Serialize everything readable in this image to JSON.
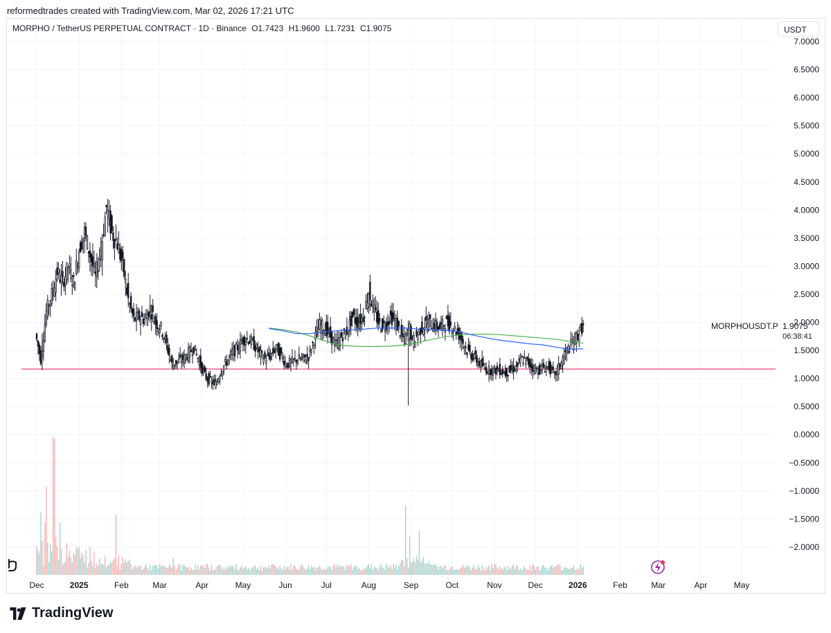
{
  "header": {
    "text": "reformedtrades created with TradingView.com, Mar 02, 2026 17:21 UTC"
  },
  "legend": {
    "symbol": "MORPHO / TetherUS PERPETUAL CONTRACT · 1D · Binance",
    "open": "O1.7423",
    "high": "H1.9600",
    "low": "L1.7231",
    "close": "C1.9075"
  },
  "currency_button": "USDT",
  "last_price": {
    "symbol": "MORPHOUSDT.P",
    "price": "1.9075",
    "countdown": "06:38:41"
  },
  "brand": "TradingView",
  "colors": {
    "candle": "#131722",
    "support_line": "#f06292",
    "ma_green": "#4caf50",
    "ma_blue": "#2962ff",
    "vol_up": "#26a69a",
    "vol_down": "#ef5350",
    "grid": "#f0f3fa"
  },
  "chart_data": {
    "type": "line",
    "subtype": "candlestick",
    "yaxis": {
      "ticks": [
        "7.0000",
        "6.5000",
        "6.0000",
        "5.5000",
        "5.0000",
        "4.5000",
        "4.0000",
        "3.5000",
        "3.0000",
        "2.5000",
        "2.0000",
        "1.5000",
        "1.0000",
        "0.5000",
        "0.0000",
        "−0.5000",
        "−1.0000",
        "−1.5000",
        "−2.0000"
      ],
      "tick_values": [
        7,
        6.5,
        6,
        5.5,
        5,
        4.5,
        4,
        3.5,
        3,
        2.5,
        2,
        1.5,
        1,
        0.5,
        0,
        -0.5,
        -1,
        -1.5,
        -2
      ],
      "ylim": [
        -2.5,
        7.0
      ]
    },
    "xaxis": {
      "ticks": [
        "Dec",
        "2025",
        "Feb",
        "Mar",
        "Apr",
        "May",
        "Jun",
        "Jul",
        "Aug",
        "Sep",
        "Oct",
        "Nov",
        "Dec",
        "2026",
        "Feb",
        "Mar",
        "Apr",
        "May"
      ],
      "bold": [
        false,
        true,
        false,
        false,
        false,
        false,
        false,
        false,
        false,
        false,
        false,
        false,
        false,
        true,
        false,
        false,
        false,
        false
      ],
      "tick_days": [
        0,
        31,
        62,
        90,
        121,
        151,
        182,
        212,
        243,
        274,
        304,
        335,
        365,
        396,
        427,
        455,
        486,
        516
      ]
    },
    "support_level": 1.17,
    "price_path": [
      [
        0,
        1.8
      ],
      [
        4,
        1.35
      ],
      [
        8,
        2.2
      ],
      [
        12,
        2.5
      ],
      [
        16,
        2.9
      ],
      [
        20,
        2.7
      ],
      [
        24,
        3.0
      ],
      [
        28,
        2.7
      ],
      [
        32,
        3.3
      ],
      [
        36,
        3.6
      ],
      [
        40,
        3.2
      ],
      [
        44,
        2.8
      ],
      [
        48,
        3.3
      ],
      [
        52,
        4.05
      ],
      [
        56,
        3.6
      ],
      [
        60,
        3.4
      ],
      [
        64,
        3.0
      ],
      [
        68,
        2.4
      ],
      [
        72,
        2.05
      ],
      [
        76,
        2.1
      ],
      [
        80,
        2.05
      ],
      [
        84,
        2.25
      ],
      [
        88,
        2.0
      ],
      [
        92,
        1.9
      ],
      [
        96,
        1.6
      ],
      [
        100,
        1.25
      ],
      [
        104,
        1.3
      ],
      [
        108,
        1.35
      ],
      [
        112,
        1.45
      ],
      [
        116,
        1.55
      ],
      [
        120,
        1.3
      ],
      [
        124,
        1.05
      ],
      [
        128,
        0.95
      ],
      [
        132,
        0.9
      ],
      [
        136,
        1.15
      ],
      [
        140,
        1.3
      ],
      [
        144,
        1.45
      ],
      [
        148,
        1.55
      ],
      [
        152,
        1.7
      ],
      [
        156,
        1.7
      ],
      [
        160,
        1.6
      ],
      [
        164,
        1.45
      ],
      [
        168,
        1.35
      ],
      [
        172,
        1.4
      ],
      [
        176,
        1.55
      ],
      [
        180,
        1.4
      ],
      [
        184,
        1.25
      ],
      [
        188,
        1.3
      ],
      [
        192,
        1.35
      ],
      [
        196,
        1.35
      ],
      [
        200,
        1.4
      ],
      [
        204,
        1.7
      ],
      [
        208,
        1.95
      ],
      [
        212,
        1.9
      ],
      [
        216,
        1.75
      ],
      [
        220,
        1.6
      ],
      [
        224,
        1.75
      ],
      [
        228,
        1.85
      ],
      [
        232,
        2.1
      ],
      [
        236,
        2.0
      ],
      [
        240,
        2.1
      ],
      [
        244,
        2.55
      ],
      [
        248,
        2.2
      ],
      [
        252,
        1.95
      ],
      [
        256,
        1.95
      ],
      [
        260,
        2.1
      ],
      [
        264,
        2.0
      ],
      [
        268,
        1.75
      ],
      [
        270,
        1.7
      ],
      [
        274,
        1.9
      ],
      [
        276,
        1.65
      ],
      [
        280,
        1.8
      ],
      [
        284,
        1.95
      ],
      [
        288,
        2.0
      ],
      [
        292,
        1.95
      ],
      [
        296,
        1.9
      ],
      [
        300,
        2.0
      ],
      [
        304,
        1.95
      ],
      [
        308,
        1.85
      ],
      [
        312,
        1.7
      ],
      [
        316,
        1.5
      ],
      [
        320,
        1.4
      ],
      [
        324,
        1.3
      ],
      [
        328,
        1.2
      ],
      [
        332,
        1.15
      ],
      [
        336,
        1.15
      ],
      [
        340,
        1.15
      ],
      [
        344,
        1.1
      ],
      [
        348,
        1.15
      ],
      [
        352,
        1.2
      ],
      [
        356,
        1.35
      ],
      [
        360,
        1.3
      ],
      [
        364,
        1.2
      ],
      [
        368,
        1.15
      ],
      [
        372,
        1.2
      ],
      [
        376,
        1.2
      ],
      [
        380,
        1.05
      ],
      [
        384,
        1.25
      ],
      [
        388,
        1.45
      ],
      [
        392,
        1.6
      ],
      [
        396,
        1.75
      ],
      [
        400,
        1.9
      ]
    ],
    "spikes": [
      [
        4,
        1.8,
        1.15
      ],
      [
        52,
        4.2,
        3.6
      ],
      [
        244,
        2.85,
        2.2
      ],
      [
        272,
        1.6,
        0.52
      ],
      [
        381,
        1.25,
        0.95
      ]
    ],
    "ma_green": [
      [
        170,
        1.9
      ],
      [
        180,
        1.87
      ],
      [
        190,
        1.83
      ],
      [
        200,
        1.76
      ],
      [
        210,
        1.68
      ],
      [
        220,
        1.6
      ],
      [
        230,
        1.58
      ],
      [
        240,
        1.57
      ],
      [
        250,
        1.57
      ],
      [
        260,
        1.58
      ],
      [
        270,
        1.6
      ],
      [
        280,
        1.65
      ],
      [
        290,
        1.7
      ],
      [
        300,
        1.75
      ],
      [
        310,
        1.78
      ],
      [
        320,
        1.79
      ],
      [
        330,
        1.79
      ],
      [
        340,
        1.78
      ],
      [
        350,
        1.76
      ],
      [
        360,
        1.74
      ],
      [
        370,
        1.72
      ],
      [
        380,
        1.7
      ],
      [
        390,
        1.66
      ],
      [
        400,
        1.63
      ]
    ],
    "ma_blue": [
      [
        170,
        1.89
      ],
      [
        180,
        1.85
      ],
      [
        190,
        1.8
      ],
      [
        200,
        1.8
      ],
      [
        210,
        1.83
      ],
      [
        220,
        1.85
      ],
      [
        230,
        1.87
      ],
      [
        240,
        1.88
      ],
      [
        250,
        1.9
      ],
      [
        260,
        1.9
      ],
      [
        270,
        1.9
      ],
      [
        280,
        1.88
      ],
      [
        290,
        1.87
      ],
      [
        300,
        1.86
      ],
      [
        310,
        1.83
      ],
      [
        320,
        1.77
      ],
      [
        330,
        1.72
      ],
      [
        340,
        1.68
      ],
      [
        350,
        1.65
      ],
      [
        360,
        1.62
      ],
      [
        370,
        1.6
      ],
      [
        380,
        1.56
      ],
      [
        390,
        1.52
      ],
      [
        400,
        1.53
      ]
    ],
    "volume_peaks": [
      [
        3,
        0.45
      ],
      [
        6,
        0.38
      ],
      [
        7,
        0.64
      ],
      [
        10,
        0.22
      ],
      [
        12,
        1.0
      ],
      [
        13,
        0.98
      ],
      [
        17,
        0.38
      ],
      [
        22,
        0.23
      ],
      [
        33,
        0.16
      ],
      [
        40,
        0.1
      ],
      [
        58,
        0.44
      ],
      [
        100,
        0.12
      ],
      [
        247,
        0.06
      ],
      [
        270,
        0.5
      ],
      [
        273,
        0.28
      ],
      [
        280,
        0.32
      ],
      [
        286,
        0.08
      ],
      [
        376,
        0.06
      ]
    ]
  }
}
